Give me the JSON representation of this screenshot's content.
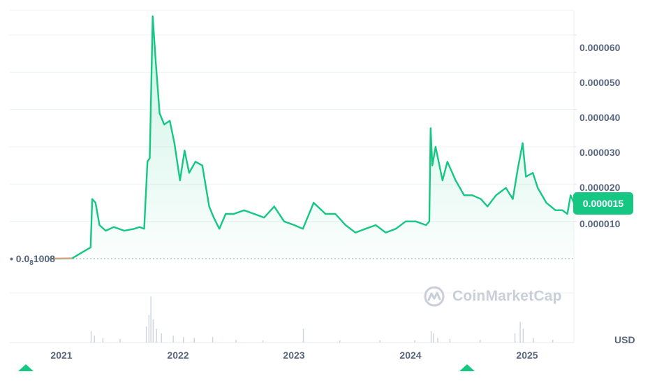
{
  "chart_data": {
    "type": "area",
    "title": "",
    "currency": "USD",
    "x_ticks": [
      "2021",
      "2022",
      "2023",
      "2024",
      "2025"
    ],
    "y_ticks": [
      "0.000010",
      "0.000020",
      "0.000030",
      "0.000040",
      "0.000050",
      "0.000060"
    ],
    "ylim": [
      0,
      6.6e-05
    ],
    "xlim": [
      "2020-09-01",
      "2025-05-15"
    ],
    "current_price": "0.000015",
    "baseline_label": {
      "prefix": "0.0",
      "subscript": "8",
      "suffix": "1008"
    },
    "line_color": "#16c784",
    "series": [
      {
        "x": [
          "2021-01-01",
          "2021-02-01",
          "2021-03-10",
          "2021-04-15",
          "2021-05-05",
          "2021-05-10",
          "2021-05-20",
          "2021-06-01",
          "2021-06-20",
          "2021-07-15",
          "2021-08-15",
          "2021-09-15",
          "2021-10-01",
          "2021-10-15",
          "2021-10-25",
          "2021-11-01",
          "2021-11-10",
          "2021-11-20",
          "2021-12-01",
          "2021-12-15",
          "2022-01-01",
          "2022-01-15",
          "2022-02-01",
          "2022-02-15",
          "2022-03-01",
          "2022-03-20",
          "2022-04-10",
          "2022-05-01",
          "2022-05-15",
          "2022-06-01",
          "2022-06-20",
          "2022-07-15",
          "2022-08-15",
          "2022-09-15",
          "2022-10-15",
          "2022-11-15",
          "2022-12-15",
          "2023-01-15",
          "2023-02-10",
          "2023-03-15",
          "2023-04-20",
          "2023-05-20",
          "2023-06-20",
          "2023-07-20",
          "2023-08-20",
          "2023-09-20",
          "2023-10-20",
          "2023-11-20",
          "2023-12-20",
          "2024-01-20",
          "2024-02-20",
          "2024-03-01",
          "2024-03-05",
          "2024-03-10",
          "2024-03-20",
          "2024-04-10",
          "2024-04-25",
          "2024-05-20",
          "2024-06-15",
          "2024-07-10",
          "2024-08-05",
          "2024-08-25",
          "2024-09-20",
          "2024-10-20",
          "2024-11-10",
          "2024-11-25",
          "2024-12-10",
          "2024-12-20",
          "2025-01-10",
          "2025-01-25",
          "2025-02-20",
          "2025-03-20",
          "2025-04-10",
          "2025-04-25",
          "2025-05-05",
          "2025-05-15"
        ],
        "y": [
          1e-08,
          1e-08,
          1e-07,
          2e-06,
          3e-06,
          1.6e-05,
          1.5e-05,
          9e-06,
          7.5e-06,
          8.5e-06,
          7.5e-06,
          8e-06,
          8.5e-06,
          8e-06,
          2.6e-05,
          2.7e-05,
          6.5e-05,
          5.2e-05,
          3.9e-05,
          3.6e-05,
          3.7e-05,
          3.1e-05,
          2.1e-05,
          2.9e-05,
          2.3e-05,
          2.6e-05,
          2.5e-05,
          1.4e-05,
          1.1e-05,
          8e-06,
          1.2e-05,
          1.2e-05,
          1.3e-05,
          1.2e-05,
          1.1e-05,
          1.4e-05,
          1e-05,
          9e-06,
          8e-06,
          1.5e-05,
          1.2e-05,
          1.2e-05,
          9e-06,
          7e-06,
          8e-06,
          9e-06,
          7e-06,
          8e-06,
          1e-05,
          1e-05,
          9e-06,
          1e-05,
          3.5e-05,
          2.5e-05,
          3e-05,
          2.1e-05,
          2.6e-05,
          2.1e-05,
          1.7e-05,
          1.7e-05,
          1.6e-05,
          1.4e-05,
          1.7e-05,
          1.9e-05,
          1.6e-05,
          2.4e-05,
          3.1e-05,
          2.2e-05,
          2.3e-05,
          1.9e-05,
          1.5e-05,
          1.3e-05,
          1.3e-05,
          1.2e-05,
          1.7e-05,
          1.5e-05
        ]
      }
    ],
    "volume": {
      "x": [
        "2021-05-05",
        "2021-05-15",
        "2021-06-10",
        "2021-08-01",
        "2021-10-20",
        "2021-10-28",
        "2021-11-03",
        "2021-11-10",
        "2021-11-20",
        "2021-12-05",
        "2022-01-10",
        "2022-02-10",
        "2022-03-15",
        "2022-05-10",
        "2022-07-20",
        "2022-10-10",
        "2023-02-10",
        "2023-06-01",
        "2023-10-01",
        "2024-01-15",
        "2024-03-05",
        "2024-03-12",
        "2024-03-25",
        "2024-05-01",
        "2024-08-01",
        "2024-11-15",
        "2024-12-01",
        "2024-12-10",
        "2025-01-10",
        "2025-03-10"
      ],
      "y": [
        0.25,
        0.15,
        0.1,
        0.08,
        0.35,
        0.6,
        1.0,
        0.5,
        0.3,
        0.2,
        0.15,
        0.12,
        0.1,
        0.12,
        0.06,
        0.05,
        0.3,
        0.05,
        0.05,
        0.05,
        0.25,
        0.2,
        0.1,
        0.08,
        0.06,
        0.2,
        0.45,
        0.3,
        0.1,
        0.06
      ]
    }
  },
  "watermark": {
    "text": "CoinMarketCap",
    "icon": "coinmarketcap-logo-icon"
  }
}
